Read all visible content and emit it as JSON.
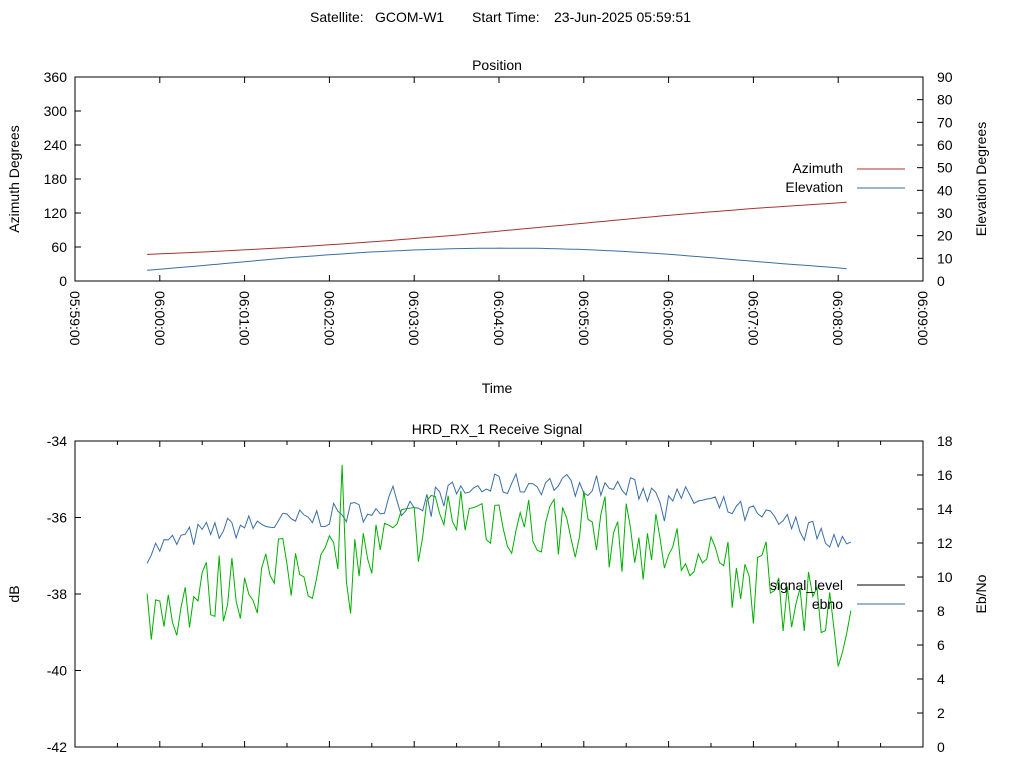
{
  "header": {
    "satellite_label": "Satellite:",
    "satellite_name": "GCOM-W1",
    "start_label": "Start Time:",
    "start_time": "23-Jun-2025 05:59:51"
  },
  "chart_data": [
    {
      "type": "line",
      "title": "Position",
      "xlabel": "Time",
      "ylabel": "Azimuth Degrees",
      "y2label": "Elevation Degrees",
      "xlim": [
        "05:59:00",
        "06:09:00"
      ],
      "xticks": [
        "05:59:00",
        "06:00:00",
        "06:01:00",
        "06:02:00",
        "06:03:00",
        "06:04:00",
        "06:05:00",
        "06:06:00",
        "06:07:00",
        "06:08:00",
        "06:09:00"
      ],
      "ylim": [
        0,
        360
      ],
      "yticks": [
        0,
        60,
        120,
        180,
        240,
        300,
        360
      ],
      "y2lim": [
        0,
        90
      ],
      "y2ticks": [
        0,
        10,
        20,
        30,
        40,
        50,
        60,
        70,
        80,
        90
      ],
      "legend_position": "right",
      "grid": false,
      "series": [
        {
          "name": "Azimuth",
          "axis": "left",
          "color": "#a83232",
          "x": [
            "05:59:51",
            "06:00:30",
            "06:01:00",
            "06:01:30",
            "06:02:00",
            "06:02:30",
            "06:03:00",
            "06:03:30",
            "06:04:00",
            "06:04:30",
            "06:05:00",
            "06:05:30",
            "06:06:00",
            "06:06:30",
            "06:07:00",
            "06:07:30",
            "06:08:00",
            "06:08:10"
          ],
          "values": [
            47,
            51,
            55,
            59,
            64,
            69,
            75,
            81,
            88,
            95,
            102,
            109,
            116,
            122,
            128,
            133,
            138,
            140
          ]
        },
        {
          "name": "Elevation",
          "axis": "right",
          "color": "#3a6ea5",
          "x": [
            "05:59:51",
            "06:00:30",
            "06:01:00",
            "06:01:30",
            "06:02:00",
            "06:02:30",
            "06:03:00",
            "06:03:30",
            "06:04:00",
            "06:04:30",
            "06:05:00",
            "06:05:30",
            "06:06:00",
            "06:06:30",
            "06:07:00",
            "06:07:30",
            "06:08:00",
            "06:08:10"
          ],
          "values": [
            4.7,
            6.8,
            8.5,
            10.2,
            11.6,
            12.8,
            13.7,
            14.3,
            14.5,
            14.4,
            13.9,
            13.0,
            11.8,
            10.3,
            8.7,
            7.2,
            5.8,
            5.1
          ]
        }
      ]
    },
    {
      "type": "line",
      "title": "HRD_RX_1 Receive Signal",
      "ylabel": "dB",
      "y2label": "Eb/No",
      "xlim": [
        "05:59:00",
        "06:09:00"
      ],
      "ylim": [
        -42,
        -34
      ],
      "yticks": [
        -42,
        -40,
        -38,
        -36,
        -34
      ],
      "y2lim": [
        0,
        18
      ],
      "y2ticks": [
        0,
        2,
        4,
        6,
        8,
        10,
        12,
        14,
        16,
        18
      ],
      "legend_position": "right",
      "grid": false,
      "series": [
        {
          "name": "signal_level",
          "axis": "left",
          "color": "#000000",
          "x": [],
          "values": []
        },
        {
          "name": "ebno",
          "axis": "right",
          "color": "#3a6ea5",
          "x": [
            "05:59:51",
            "06:00:30",
            "06:01:00",
            "06:01:30",
            "06:02:00",
            "06:02:30",
            "06:03:00",
            "06:03:30",
            "06:04:00",
            "06:04:30",
            "06:05:00",
            "06:05:30",
            "06:06:00",
            "06:06:30",
            "06:07:00",
            "06:07:30",
            "06:08:00",
            "06:08:10"
          ],
          "values": [
            11.5,
            12.6,
            13.0,
            13.2,
            13.6,
            14.0,
            14.4,
            15.0,
            15.4,
            15.5,
            15.4,
            15.2,
            14.9,
            14.3,
            13.6,
            13.0,
            12.3,
            11.6
          ],
          "noise": 0.7
        },
        {
          "name": "",
          "axis": "right",
          "color": "#00b000",
          "x": [
            "05:59:51",
            "06:00:30",
            "06:01:00",
            "06:01:30",
            "06:02:00",
            "06:02:30",
            "06:03:00",
            "06:03:30",
            "06:04:00",
            "06:04:30",
            "06:05:00",
            "06:05:30",
            "06:06:00",
            "06:06:30",
            "06:07:00",
            "06:07:30",
            "06:08:00",
            "06:08:10"
          ],
          "values": [
            8.0,
            9.0,
            9.7,
            10.3,
            10.8,
            11.3,
            12.8,
            13.9,
            13.6,
            12.8,
            13.3,
            12.2,
            11.6,
            10.4,
            9.4,
            8.8,
            6.5,
            8.0
          ],
          "noise": 2.2
        }
      ]
    }
  ]
}
